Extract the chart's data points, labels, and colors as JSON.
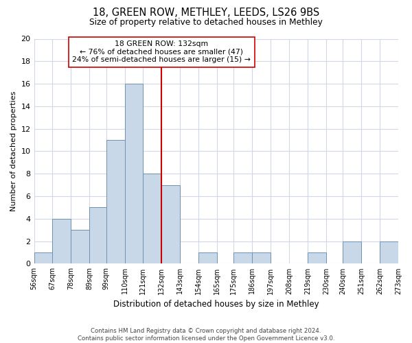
{
  "title": "18, GREEN ROW, METHLEY, LEEDS, LS26 9BS",
  "subtitle": "Size of property relative to detached houses in Methley",
  "xlabel": "Distribution of detached houses by size in Methley",
  "ylabel": "Number of detached properties",
  "bin_edges": [
    56,
    67,
    78,
    89,
    99,
    110,
    121,
    132,
    143,
    154,
    165,
    175,
    186,
    197,
    208,
    219,
    230,
    240,
    251,
    262,
    273
  ],
  "bar_heights": [
    1,
    4,
    3,
    5,
    11,
    16,
    8,
    7,
    0,
    1,
    0,
    1,
    1,
    0,
    0,
    1,
    0,
    2,
    0,
    2
  ],
  "bar_color": "#c8d8e8",
  "bar_edgecolor": "#7090b0",
  "property_line_x": 132,
  "property_line_color": "#cc0000",
  "annotation_line1": "18 GREEN ROW: 132sqm",
  "annotation_line2": "← 76% of detached houses are smaller (47)",
  "annotation_line3": "24% of semi-detached houses are larger (15) →",
  "annotation_box_edgecolor": "#cc0000",
  "annotation_box_facecolor": "#ffffff",
  "ylim": [
    0,
    20
  ],
  "yticks": [
    0,
    2,
    4,
    6,
    8,
    10,
    12,
    14,
    16,
    18,
    20
  ],
  "tick_labels": [
    "56sqm",
    "67sqm",
    "78sqm",
    "89sqm",
    "99sqm",
    "110sqm",
    "121sqm",
    "132sqm",
    "143sqm",
    "154sqm",
    "165sqm",
    "175sqm",
    "186sqm",
    "197sqm",
    "208sqm",
    "219sqm",
    "230sqm",
    "240sqm",
    "251sqm",
    "262sqm",
    "273sqm"
  ],
  "footer_text": "Contains HM Land Registry data © Crown copyright and database right 2024.\nContains public sector information licensed under the Open Government Licence v3.0.",
  "background_color": "#ffffff",
  "grid_color": "#d0d8e8"
}
